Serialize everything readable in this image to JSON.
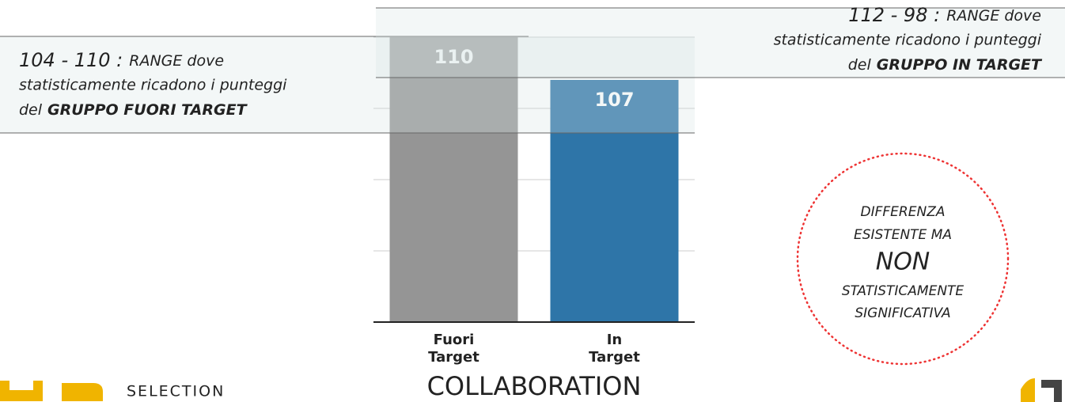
{
  "chart_data": {
    "type": "bar",
    "title": "COLLABORATION",
    "categories": [
      "Fuori Target",
      "In Target"
    ],
    "values": [
      110,
      107
    ],
    "colors": [
      "#959595",
      "#2e75a8"
    ],
    "ylim": [
      90,
      112
    ],
    "yticks": [
      90,
      95,
      100,
      105,
      110
    ],
    "grid": true,
    "annotations": [
      {
        "range": "104 - 110 :",
        "lines": [
          "RANGE dove",
          "statisticamente ricadono i punteggi",
          "del"
        ],
        "group": "GRUPPO FUORI TARGET"
      },
      {
        "range": "112 - 98 :",
        "lines": [
          "RANGE dove",
          "statisticamente ricadono i punteggi",
          "del"
        ],
        "group": "GRUPPO IN TARGET"
      }
    ],
    "note": [
      "DIFFERENZA",
      "ESISTENTE MA",
      "NON",
      "STATISTICAMENTE",
      "SIGNIFICATIVA"
    ],
    "brand": "SELECTION"
  }
}
